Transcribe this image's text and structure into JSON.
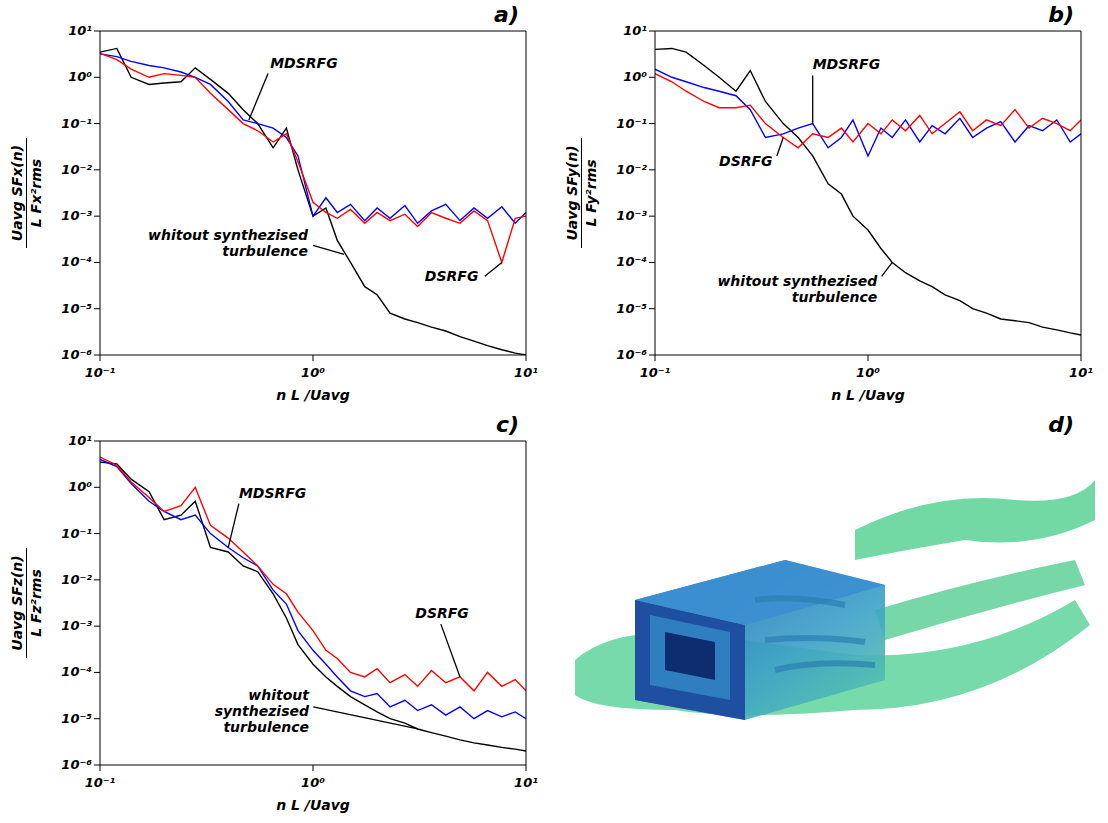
{
  "chart_data": [
    {
      "type": "line",
      "panel_label": "a)",
      "x_label": "n L /Uavg",
      "y_label": {
        "numerator": "Uavg SFx(n)",
        "denominator": "L Fx²rms"
      },
      "log": true,
      "grid": false,
      "xlim": [
        0.1,
        10
      ],
      "ylim": [
        1e-06,
        10
      ],
      "xticks": [
        {
          "value": 0.1,
          "label": "10⁻¹"
        },
        {
          "value": 1,
          "label": "10⁰"
        },
        {
          "value": 10,
          "label": "10¹"
        }
      ],
      "yticks": [
        {
          "value": 1e-06,
          "label": "10⁻⁶"
        },
        {
          "value": 1e-05,
          "label": "10⁻⁵"
        },
        {
          "value": 0.0001,
          "label": "10⁻⁴"
        },
        {
          "value": 0.001,
          "label": "10⁻³"
        },
        {
          "value": 0.01,
          "label": "10⁻²"
        },
        {
          "value": 0.1,
          "label": "10⁻¹"
        },
        {
          "value": 1,
          "label": "10⁰"
        },
        {
          "value": 10,
          "label": "10¹"
        }
      ],
      "x": [
        0.1,
        0.12,
        0.14,
        0.17,
        0.2,
        0.24,
        0.28,
        0.33,
        0.4,
        0.47,
        0.55,
        0.65,
        0.75,
        0.85,
        1.0,
        1.15,
        1.3,
        1.5,
        1.75,
        2.0,
        2.3,
        2.7,
        3.1,
        3.6,
        4.2,
        4.9,
        5.7,
        6.6,
        7.7,
        8.9,
        10
      ],
      "series": [
        {
          "name": "whitout synthezised turbulence",
          "color": "#000000",
          "values": [
            3.5,
            4.2,
            1.0,
            0.7,
            0.75,
            0.8,
            1.6,
            0.9,
            0.45,
            0.2,
            0.1,
            0.03,
            0.08,
            0.01,
            0.001,
            0.0015,
            0.0003,
            0.0001,
            3e-05,
            2e-05,
            8e-06,
            6e-06,
            5e-06,
            4e-06,
            3.3e-06,
            2.5e-06,
            2e-06,
            1.6e-06,
            1.3e-06,
            1.1e-06,
            1e-06
          ]
        },
        {
          "name": "MDSRFG",
          "color": "#0000ff",
          "values": [
            3.2,
            2.8,
            2.2,
            1.8,
            1.6,
            1.3,
            1.0,
            0.7,
            0.3,
            0.12,
            0.1,
            0.08,
            0.05,
            0.02,
            0.001,
            0.0025,
            0.0012,
            0.0018,
            0.0008,
            0.0015,
            0.0009,
            0.0017,
            0.0007,
            0.0013,
            0.0018,
            0.0008,
            0.0015,
            0.0009,
            0.0016,
            0.0007,
            0.0012
          ]
        },
        {
          "name": "DSRFG",
          "color": "#ff0000",
          "values": [
            3.3,
            2.4,
            1.5,
            1.0,
            1.2,
            1.1,
            1.0,
            0.45,
            0.2,
            0.1,
            0.07,
            0.04,
            0.06,
            0.015,
            0.002,
            0.0012,
            0.0009,
            0.0014,
            0.0007,
            0.0012,
            0.0008,
            0.0011,
            0.0006,
            0.0012,
            0.0009,
            0.0007,
            0.0013,
            0.0008,
            0.0001,
            0.0009,
            0.001
          ]
        }
      ],
      "annotations": [
        {
          "text": "MDSRFG",
          "x": 0.5,
          "y": 0.12
        },
        {
          "text": "DSRFG",
          "x": 7.7,
          "y": 0.0001
        },
        {
          "text": "whitout synthezised turbulence",
          "x": 1.4,
          "y": 0.00015
        }
      ]
    },
    {
      "type": "line",
      "panel_label": "b)",
      "x_label": "n L /Uavg",
      "y_label": {
        "numerator": "Uavg SFy(n)",
        "denominator": "L Fy²rms"
      },
      "log": true,
      "grid": false,
      "xlim": [
        0.1,
        10
      ],
      "ylim": [
        1e-06,
        10
      ],
      "xticks": [
        {
          "value": 0.1,
          "label": "10⁻¹"
        },
        {
          "value": 1,
          "label": "10⁰"
        },
        {
          "value": 10,
          "label": "10¹"
        }
      ],
      "yticks": [
        {
          "value": 1e-06,
          "label": "10⁻⁶"
        },
        {
          "value": 1e-05,
          "label": "10⁻⁵"
        },
        {
          "value": 0.0001,
          "label": "10⁻⁴"
        },
        {
          "value": 0.001,
          "label": "10⁻³"
        },
        {
          "value": 0.01,
          "label": "10⁻²"
        },
        {
          "value": 0.1,
          "label": "10⁻¹"
        },
        {
          "value": 1,
          "label": "10⁰"
        },
        {
          "value": 10,
          "label": "10¹"
        }
      ],
      "x": [
        0.1,
        0.12,
        0.14,
        0.17,
        0.2,
        0.24,
        0.28,
        0.33,
        0.4,
        0.47,
        0.55,
        0.65,
        0.75,
        0.85,
        1.0,
        1.15,
        1.3,
        1.5,
        1.75,
        2.0,
        2.3,
        2.7,
        3.1,
        3.6,
        4.2,
        4.9,
        5.7,
        6.6,
        7.7,
        8.9,
        10
      ],
      "series": [
        {
          "name": "whitout synthezised turbulence",
          "color": "#000000",
          "values": [
            4.0,
            4.2,
            3.5,
            1.8,
            1.0,
            0.5,
            1.4,
            0.3,
            0.1,
            0.05,
            0.02,
            0.005,
            0.003,
            0.001,
            0.0005,
            0.0002,
            0.0001,
            6e-05,
            4e-05,
            3e-05,
            2e-05,
            1.5e-05,
            1e-05,
            8e-06,
            6e-06,
            5.5e-06,
            5e-06,
            4e-06,
            3.5e-06,
            3e-06,
            2.7e-06
          ]
        },
        {
          "name": "MDSRFG",
          "color": "#0000ff",
          "values": [
            1.5,
            1.0,
            0.8,
            0.6,
            0.5,
            0.4,
            0.2,
            0.05,
            0.06,
            0.08,
            0.1,
            0.03,
            0.05,
            0.12,
            0.02,
            0.08,
            0.05,
            0.12,
            0.04,
            0.09,
            0.06,
            0.13,
            0.05,
            0.08,
            0.11,
            0.04,
            0.09,
            0.07,
            0.12,
            0.04,
            0.06
          ]
        },
        {
          "name": "DSRFG",
          "color": "#ff0000",
          "values": [
            1.2,
            0.8,
            0.5,
            0.3,
            0.22,
            0.22,
            0.25,
            0.1,
            0.05,
            0.03,
            0.06,
            0.05,
            0.08,
            0.04,
            0.1,
            0.06,
            0.12,
            0.07,
            0.15,
            0.06,
            0.1,
            0.18,
            0.07,
            0.12,
            0.09,
            0.2,
            0.08,
            0.13,
            0.1,
            0.07,
            0.12
          ]
        }
      ],
      "annotations": [
        {
          "text": "MDSRFG",
          "x": 0.55,
          "y": 0.1
        },
        {
          "text": "DSRFG",
          "x": 0.4,
          "y": 0.05
        },
        {
          "text": "whitout synthezised turbulence",
          "x": 1.3,
          "y": 0.0001
        }
      ]
    },
    {
      "type": "line",
      "panel_label": "c)",
      "x_label": "n L /Uavg",
      "y_label": {
        "numerator": "Uavg SFz(n)",
        "denominator": "L Fz²rms"
      },
      "log": true,
      "grid": false,
      "xlim": [
        0.1,
        10
      ],
      "ylim": [
        1e-06,
        10
      ],
      "xticks": [
        {
          "value": 0.1,
          "label": "10⁻¹"
        },
        {
          "value": 1,
          "label": "10⁰"
        },
        {
          "value": 10,
          "label": "10¹"
        }
      ],
      "yticks": [
        {
          "value": 1e-06,
          "label": "10⁻⁶"
        },
        {
          "value": 1e-05,
          "label": "10⁻⁵"
        },
        {
          "value": 0.0001,
          "label": "10⁻⁴"
        },
        {
          "value": 0.001,
          "label": "10⁻³"
        },
        {
          "value": 0.01,
          "label": "10⁻²"
        },
        {
          "value": 0.1,
          "label": "10⁻¹"
        },
        {
          "value": 1,
          "label": "10⁰"
        },
        {
          "value": 10,
          "label": "10¹"
        }
      ],
      "x": [
        0.1,
        0.12,
        0.14,
        0.17,
        0.2,
        0.24,
        0.28,
        0.33,
        0.4,
        0.47,
        0.55,
        0.65,
        0.75,
        0.85,
        1.0,
        1.15,
        1.3,
        1.5,
        1.75,
        2.0,
        2.3,
        2.7,
        3.1,
        3.6,
        4.2,
        4.9,
        5.7,
        6.6,
        7.7,
        8.9,
        10
      ],
      "series": [
        {
          "name": "whitout synthezised turbulence",
          "color": "#000000",
          "values": [
            3.5,
            3.2,
            1.5,
            0.8,
            0.2,
            0.25,
            0.5,
            0.05,
            0.04,
            0.02,
            0.015,
            0.005,
            0.0015,
            0.0004,
            0.00015,
            8e-05,
            5e-05,
            3e-05,
            2e-05,
            1.4e-05,
            1e-05,
            8e-06,
            6e-06,
            5e-06,
            4.2e-06,
            3.5e-06,
            3e-06,
            2.7e-06,
            2.4e-06,
            2.2e-06,
            2e-06
          ]
        },
        {
          "name": "MDSRFG",
          "color": "#0000ff",
          "values": [
            4.0,
            2.8,
            1.2,
            0.5,
            0.3,
            0.2,
            0.25,
            0.1,
            0.05,
            0.03,
            0.02,
            0.006,
            0.003,
            0.0008,
            0.0003,
            0.00015,
            8e-05,
            4e-05,
            3e-05,
            3.5e-05,
            1.8e-05,
            2.5e-05,
            1.5e-05,
            2e-05,
            1.2e-05,
            1.8e-05,
            1e-05,
            1.5e-05,
            1.1e-05,
            1.4e-05,
            1e-05
          ]
        },
        {
          "name": "DSRFG",
          "color": "#ff0000",
          "values": [
            4.5,
            3.0,
            1.3,
            0.6,
            0.3,
            0.4,
            1.0,
            0.15,
            0.08,
            0.04,
            0.02,
            0.008,
            0.005,
            0.002,
            0.0008,
            0.0003,
            0.0002,
            0.0001,
            8e-05,
            0.00012,
            6e-05,
            9e-05,
            5e-05,
            0.00011,
            6e-05,
            8e-05,
            4e-05,
            0.0001,
            5e-05,
            7e-05,
            4e-05
          ]
        }
      ],
      "annotations": [
        {
          "text": "MDSRFG",
          "x": 0.4,
          "y": 0.05
        },
        {
          "text": "DSRFG",
          "x": 4.9,
          "y": 8e-05
        },
        {
          "text": "whitout synthezised turbulence",
          "x": 3.1,
          "y": 6e-06
        }
      ]
    }
  ],
  "image": {
    "panel_label": "d)"
  }
}
